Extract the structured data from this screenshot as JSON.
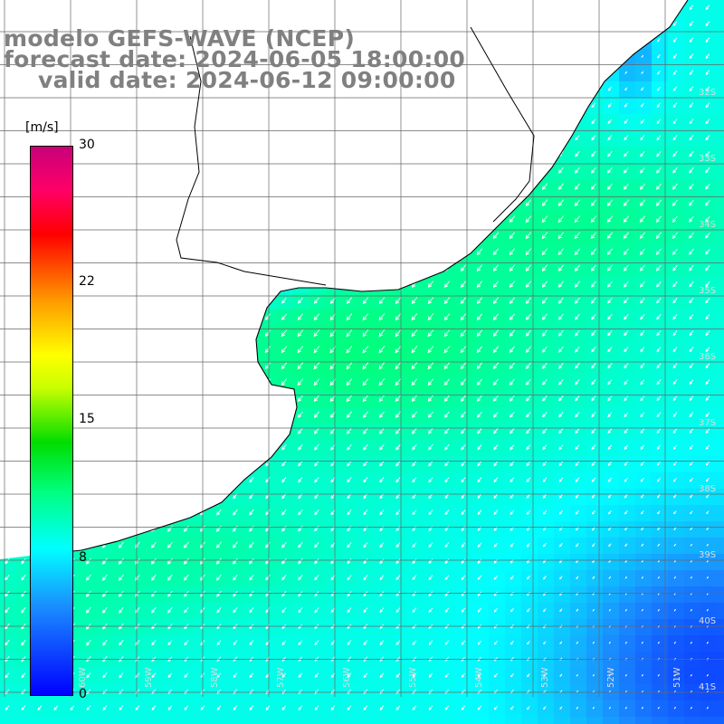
{
  "title": {
    "line1": "modelo GEFS-WAVE (NCEP)",
    "line2": "forecast date: 2024-06-05 18:00:00",
    "line3": "valid date: 2024-06-12 09:00:00"
  },
  "colorbar": {
    "unit": "[m/s]",
    "ticks": [
      "30",
      "22",
      "15",
      "8",
      "0"
    ],
    "min": 0,
    "max": 30,
    "colors": [
      "#0000ff",
      "#1a8cff",
      "#00ffff",
      "#00ff80",
      "#00dd00",
      "#c8ff00",
      "#ffff00",
      "#ff9900",
      "#ff0000",
      "#ff0066",
      "#c8007a"
    ]
  },
  "map": {
    "field": "wind speed",
    "arrow_direction": "toward south-west",
    "lat_labels": [
      "32S",
      "33S",
      "34S",
      "35S",
      "36S",
      "37S",
      "38S",
      "39S",
      "40S",
      "41S"
    ],
    "lon_labels": [
      "60W",
      "59W",
      "58W",
      "57W",
      "56W",
      "55W",
      "54W",
      "53W",
      "52W",
      "51W"
    ],
    "land_color": "#ffffff",
    "grid_color": "#666666",
    "coast_color": "#000000"
  }
}
